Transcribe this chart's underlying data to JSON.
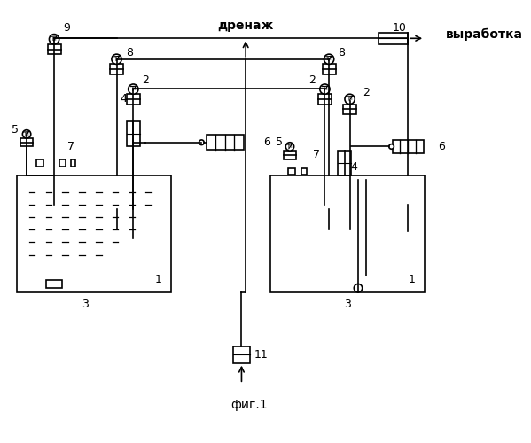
{
  "bg_color": "#ffffff",
  "line_color": "#000000",
  "title": "фиг.1",
  "drainage_label": "дренаж",
  "output_label": "выработка",
  "fig_width": 5.99,
  "fig_height": 5.0,
  "dpi": 100
}
